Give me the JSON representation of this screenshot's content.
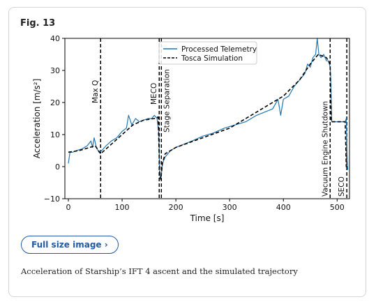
{
  "figure_label": "Fig. 13",
  "button": "Full size image ›",
  "caption": "Acceleration of Starship’s IFT 4 ascent and the simulated trajectory",
  "chart_data": {
    "type": "line",
    "xlabel": "Time [s]",
    "ylabel": "Acceleration [m/s²]",
    "xlim": [
      -6.5,
      523
    ],
    "ylim": [
      -10,
      40
    ],
    "xticks": [
      0,
      100,
      200,
      300,
      400,
      500
    ],
    "yticks": [
      {
        "value": -10,
        "label": "−10"
      },
      0,
      10,
      20,
      30,
      40
    ],
    "legend": "upper center",
    "series": [
      {
        "name": "Processed Telemetry",
        "color": "#1f77b4",
        "dash": "solid",
        "x": [
          0,
          3,
          8,
          15,
          25,
          35,
          42,
          45,
          48,
          52,
          57,
          62,
          70,
          80,
          90,
          100,
          108,
          112,
          118,
          125,
          132,
          140,
          148,
          155,
          160,
          165,
          168,
          170,
          172,
          175,
          180,
          190,
          200,
          215,
          230,
          250,
          270,
          290,
          310,
          330,
          350,
          365,
          380,
          390,
          395,
          400,
          410,
          420,
          430,
          440,
          445,
          450,
          455,
          460,
          463,
          466,
          470,
          475,
          480,
          484,
          487,
          488,
          490,
          500,
          510,
          515,
          517,
          519,
          520
        ],
        "values": [
          1,
          4.5,
          4.5,
          5,
          5.5,
          6.5,
          8,
          6,
          9,
          6,
          4.5,
          5,
          6.5,
          8,
          9,
          11,
          12,
          16,
          13,
          15,
          14,
          14.5,
          15,
          15,
          16,
          15,
          11,
          -2,
          -4,
          1,
          3,
          5,
          6,
          7,
          8,
          9.5,
          10.5,
          12,
          13,
          14,
          16,
          17,
          18,
          21,
          16,
          21,
          22,
          25,
          27,
          29,
          32,
          31,
          34,
          35,
          40,
          35,
          34,
          35,
          33,
          33,
          31,
          28,
          14,
          14,
          14,
          14,
          15,
          1,
          -1
        ]
      },
      {
        "name": "Tosca Simulation",
        "color": "#000000",
        "dash": "dashed",
        "x": [
          0,
          20,
          40,
          50,
          60,
          80,
          100,
          120,
          140,
          160,
          167,
          170,
          172,
          175,
          180,
          200,
          250,
          300,
          350,
          400,
          430,
          450,
          465,
          480,
          487,
          489,
          515,
          517,
          520
        ],
        "values": [
          4.5,
          5,
          6,
          6.5,
          4,
          7,
          10,
          13,
          14.5,
          15,
          15.5,
          -3,
          -4,
          1,
          4,
          6,
          9,
          12,
          17,
          22,
          27,
          32,
          35,
          34,
          32,
          14,
          14,
          0,
          0
        ]
      }
    ],
    "annotations": [
      {
        "label": "Max Q",
        "x": 60
      },
      {
        "label": "MECO",
        "x": 169
      },
      {
        "label": "Stage Separation",
        "x": 173
      },
      {
        "label": "Vacuum Engine Shutdown",
        "x": 487
      },
      {
        "label": "SECO",
        "x": 518
      }
    ]
  }
}
